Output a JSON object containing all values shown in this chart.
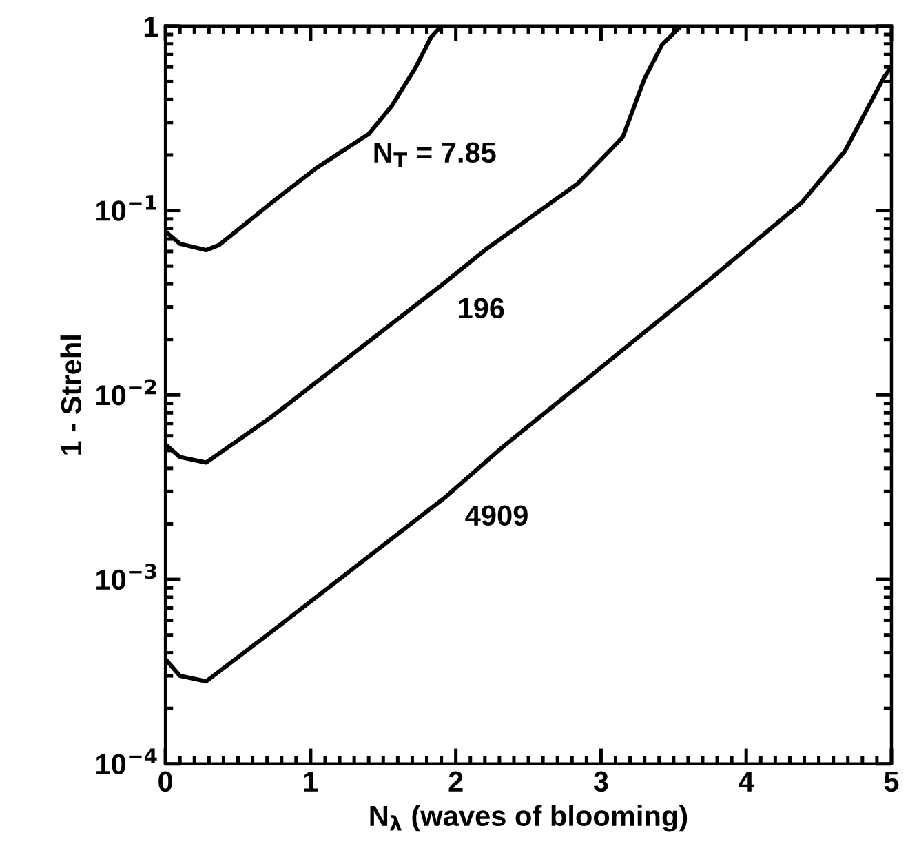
{
  "chart_data": {
    "type": "line",
    "xlabel": "N$_{λ}$ (waves of blooming)",
    "ylabel": "1 - Strehl",
    "xlim": [
      0,
      5
    ],
    "ylim": [
      0.0001,
      1
    ],
    "log": "y",
    "xticks": [
      0,
      1,
      2,
      3,
      4,
      5
    ],
    "yticks": [
      {
        "value": 0.0001,
        "label": "10$^{−4}$"
      },
      {
        "value": 0.001,
        "label": "10$^{−3}$"
      },
      {
        "value": 0.01,
        "label": "10$^{−2}$"
      },
      {
        "value": 0.1,
        "label": "10$^{−1}$"
      },
      {
        "value": 1,
        "label": "1"
      }
    ],
    "grid": false,
    "legend": false,
    "marker": "none",
    "line_style": "solid",
    "series": [
      {
        "name": "N$_{T}$ = 7.85",
        "color": "#000000",
        "x": [
          0,
          0.1,
          0.28,
          0.37,
          0.73,
          1.04,
          1.4,
          1.56,
          1.72,
          1.83,
          1.9
        ],
        "values": [
          0.077,
          0.066,
          0.061,
          0.065,
          0.11,
          0.17,
          0.26,
          0.37,
          0.59,
          0.87,
          1
        ]
      },
      {
        "name": "196",
        "color": "#000000",
        "x": [
          0,
          0.1,
          0.28,
          0.73,
          1.93,
          2.2,
          2.84,
          3.15,
          3.3,
          3.42,
          3.55
        ],
        "values": [
          0.0054,
          0.0046,
          0.0043,
          0.0076,
          0.041,
          0.061,
          0.14,
          0.25,
          0.52,
          0.79,
          1
        ]
      },
      {
        "name": "4909",
        "color": "#000000",
        "x": [
          0,
          0.1,
          0.28,
          0.73,
          1.93,
          2.32,
          3.76,
          4.38,
          4.68,
          4.95,
          5
        ],
        "values": [
          0.00037,
          0.0003,
          0.00028,
          0.00052,
          0.0028,
          0.0052,
          0.043,
          0.11,
          0.21,
          0.53,
          0.6
        ]
      }
    ]
  }
}
